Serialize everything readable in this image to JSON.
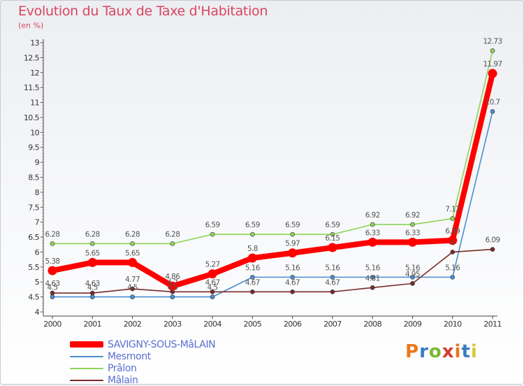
{
  "page": {
    "title": "Evolution du Taux de Taxe d'Habitation",
    "subtitle": "(en %)",
    "brand": {
      "letters": [
        "P",
        "r",
        "o",
        "x",
        "i",
        "t",
        "i"
      ],
      "colors": [
        "#e8781e",
        "#3a7cc4",
        "#79b72f",
        "#d63a2f",
        "#e8781e",
        "#3a7cc4",
        "#d6c93a"
      ]
    }
  },
  "chart_data": {
    "type": "line",
    "title": "Evolution du Taux de Taxe d'Habitation",
    "subtitle": "(en %)",
    "xlabel": "",
    "ylabel": "",
    "categories": [
      "2000",
      "2001",
      "2002",
      "2003",
      "2004",
      "2005",
      "2006",
      "2007",
      "2008",
      "2009",
      "2010",
      "2011"
    ],
    "ylim": [
      4,
      13
    ],
    "yticks": [
      "4",
      "4.5",
      "5",
      "5.5",
      "6",
      "6.5",
      "7",
      "7.5",
      "8",
      "8.5",
      "9",
      "9.5",
      "10",
      "10.5",
      "11",
      "11.5",
      "12",
      "12.5",
      "13"
    ],
    "grid": false,
    "legend_position": "bottom-left",
    "series": [
      {
        "name": "SAVIGNY-SOUS-MâLAIN",
        "color": "#ff0000",
        "values": [
          5.38,
          5.65,
          5.65,
          4.86,
          5.27,
          5.8,
          5.97,
          6.15,
          6.33,
          6.33,
          6.39,
          11.97
        ],
        "labels": [
          "5.38",
          "5.65",
          "5.65",
          "4.86",
          "5.27",
          "5.8",
          "5.97",
          "6.15",
          "6.33",
          "6.33",
          "6.39",
          "11.97"
        ]
      },
      {
        "name": "Mesmont",
        "color": "#4a8fd0",
        "values": [
          4.5,
          4.5,
          4.5,
          4.5,
          4.5,
          5.16,
          5.16,
          5.16,
          5.16,
          5.16,
          5.16,
          10.7
        ],
        "labels": [
          "4.5",
          "4.5",
          "4.5",
          "4.5",
          "4.5",
          "5.16",
          "5.16",
          "5.16",
          "5.16",
          "5.16",
          "5.16",
          "10.7"
        ]
      },
      {
        "name": "Prâlon",
        "color": "#8fd45a",
        "values": [
          6.28,
          6.28,
          6.28,
          6.28,
          6.59,
          6.59,
          6.59,
          6.59,
          6.92,
          6.92,
          7.12,
          12.73
        ],
        "labels": [
          "6.28",
          "6.28",
          "6.28",
          "6.28",
          "6.59",
          "6.59",
          "6.59",
          "6.59",
          "6.92",
          "6.92",
          "7.12",
          "12.73"
        ]
      },
      {
        "name": "Mâlain",
        "color": "#7a2a2a",
        "values": [
          4.63,
          4.63,
          4.77,
          4.67,
          4.67,
          4.67,
          4.67,
          4.67,
          4.81,
          4.95,
          6.0,
          6.09
        ],
        "labels": [
          "4.63",
          "4.63",
          "4.77",
          "4.7",
          "4.67",
          "4.67",
          "4.67",
          "4.67",
          "4.81",
          "4.95",
          "6",
          "6.09"
        ]
      }
    ]
  }
}
